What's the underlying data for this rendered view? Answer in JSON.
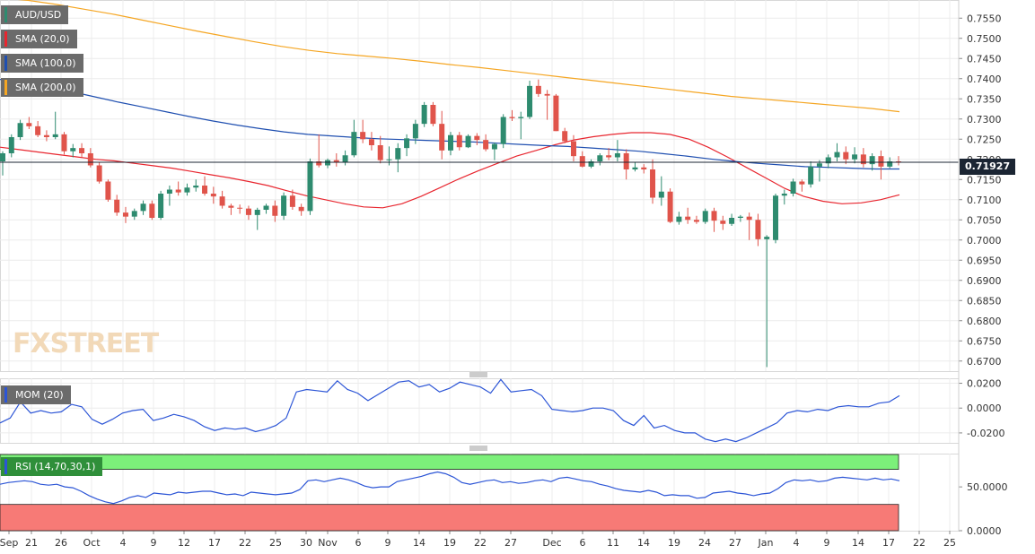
{
  "labels": {
    "pair": "AUD/USD",
    "sma20": "SMA (20,0)",
    "sma100": "SMA (100,0)",
    "sma200": "SMA (200,0)",
    "mom": "MOM (20)",
    "rsi": "RSI (14,70,30,1)",
    "current_price": "0.71927",
    "watermark": "FXSTREET"
  },
  "colors": {
    "up": "#2e8b6f",
    "down": "#e0544b",
    "sma20": "#e8262f",
    "sma100": "#1f4fb0",
    "sma200": "#f5a623",
    "mom": "#2c55d6",
    "rsi": "#2c55d6",
    "rsi_high_zone": "#7cf07a",
    "rsi_low_zone": "#f77a76"
  },
  "chart_data": [
    {
      "type": "candlestick",
      "title": "AUD/USD",
      "ylim": [
        0.6675,
        0.7595
      ],
      "y_ticks": [
        "0.7550",
        "0.7500",
        "0.7450",
        "0.7400",
        "0.7350",
        "0.7300",
        "0.7250",
        "0.7200",
        "0.7150",
        "0.7100",
        "0.7050",
        "0.7000",
        "0.6950",
        "0.6900",
        "0.6850",
        "0.6800",
        "0.6750",
        "0.6700"
      ],
      "x_ticks": [
        "Sep",
        "21",
        "26",
        "Oct",
        "4",
        "9",
        "12",
        "17",
        "22",
        "25",
        "30",
        "Nov",
        "6",
        "9",
        "14",
        "19",
        "22",
        "27",
        "Dec",
        "6",
        "11",
        "14",
        "19",
        "24",
        "27",
        "Jan",
        "4",
        "9",
        "14",
        "17",
        "22",
        "25"
      ],
      "current_price": 0.71927,
      "candles": [
        [
          0.7195,
          0.722,
          0.716,
          0.7215
        ],
        [
          0.7215,
          0.7262,
          0.7205,
          0.7255
        ],
        [
          0.7255,
          0.7298,
          0.7248,
          0.729
        ],
        [
          0.729,
          0.7305,
          0.7275,
          0.7282
        ],
        [
          0.7282,
          0.7295,
          0.7255,
          0.726
        ],
        [
          0.726,
          0.7272,
          0.7245,
          0.7255
        ],
        [
          0.7255,
          0.7318,
          0.725,
          0.7262
        ],
        [
          0.7262,
          0.7268,
          0.7212,
          0.722
        ],
        [
          0.722,
          0.7238,
          0.7205,
          0.7228
        ],
        [
          0.7228,
          0.724,
          0.7205,
          0.7215
        ],
        [
          0.7215,
          0.7228,
          0.718,
          0.7185
        ],
        [
          0.7185,
          0.7192,
          0.714,
          0.7145
        ],
        [
          0.7145,
          0.715,
          0.7095,
          0.71
        ],
        [
          0.71,
          0.7112,
          0.706,
          0.7068
        ],
        [
          0.7068,
          0.7082,
          0.7042,
          0.7058
        ],
        [
          0.7058,
          0.7078,
          0.705,
          0.7072
        ],
        [
          0.7072,
          0.7098,
          0.7062,
          0.709
        ],
        [
          0.709,
          0.7098,
          0.705,
          0.7055
        ],
        [
          0.7055,
          0.7122,
          0.705,
          0.7115
        ],
        [
          0.7115,
          0.7135,
          0.7085,
          0.7125
        ],
        [
          0.7125,
          0.7145,
          0.711,
          0.7118
        ],
        [
          0.7118,
          0.714,
          0.711,
          0.713
        ],
        [
          0.713,
          0.715,
          0.712,
          0.7135
        ],
        [
          0.7135,
          0.7158,
          0.711,
          0.7115
        ],
        [
          0.7115,
          0.7132,
          0.709,
          0.7108
        ],
        [
          0.7108,
          0.7122,
          0.7078,
          0.7085
        ],
        [
          0.7085,
          0.709,
          0.7062,
          0.708
        ],
        [
          0.708,
          0.7088,
          0.7065,
          0.7078
        ],
        [
          0.7078,
          0.7085,
          0.705,
          0.7062
        ],
        [
          0.7062,
          0.708,
          0.7025,
          0.7075
        ],
        [
          0.7075,
          0.709,
          0.7065,
          0.7085
        ],
        [
          0.7085,
          0.7098,
          0.7045,
          0.706
        ],
        [
          0.706,
          0.7118,
          0.705,
          0.711
        ],
        [
          0.711,
          0.7125,
          0.7075,
          0.7082
        ],
        [
          0.7082,
          0.709,
          0.706,
          0.7072
        ],
        [
          0.7072,
          0.7202,
          0.7062,
          0.7195
        ],
        [
          0.7195,
          0.7262,
          0.718,
          0.7185
        ],
        [
          0.7185,
          0.7202,
          0.7178,
          0.7198
        ],
        [
          0.7198,
          0.7215,
          0.7182,
          0.7192
        ],
        [
          0.7192,
          0.7222,
          0.7185,
          0.721
        ],
        [
          0.721,
          0.7298,
          0.7205,
          0.7268
        ],
        [
          0.7268,
          0.7298,
          0.724,
          0.725
        ],
        [
          0.725,
          0.7268,
          0.7222,
          0.7235
        ],
        [
          0.7235,
          0.7258,
          0.719,
          0.7198
        ],
        [
          0.7198,
          0.7232,
          0.7185,
          0.72
        ],
        [
          0.72,
          0.724,
          0.7168,
          0.7228
        ],
        [
          0.7228,
          0.7262,
          0.7208,
          0.7252
        ],
        [
          0.7252,
          0.7298,
          0.7238,
          0.7288
        ],
        [
          0.7288,
          0.7342,
          0.728,
          0.7335
        ],
        [
          0.7335,
          0.7342,
          0.7282,
          0.7288
        ],
        [
          0.7288,
          0.732,
          0.72,
          0.7222
        ],
        [
          0.7222,
          0.7268,
          0.721,
          0.726
        ],
        [
          0.726,
          0.7268,
          0.7222,
          0.723
        ],
        [
          0.723,
          0.7262,
          0.7228,
          0.7258
        ],
        [
          0.7258,
          0.7265,
          0.7235,
          0.7248
        ],
        [
          0.7248,
          0.7262,
          0.722,
          0.7225
        ],
        [
          0.7225,
          0.7242,
          0.7198,
          0.7238
        ],
        [
          0.7238,
          0.7312,
          0.7228,
          0.7305
        ],
        [
          0.7305,
          0.7322,
          0.7295,
          0.7302
        ],
        [
          0.7302,
          0.7318,
          0.725,
          0.7305
        ],
        [
          0.7305,
          0.7395,
          0.73,
          0.7382
        ],
        [
          0.7382,
          0.7398,
          0.7355,
          0.7362
        ],
        [
          0.7362,
          0.7372,
          0.7298,
          0.7358
        ],
        [
          0.7358,
          0.7362,
          0.727,
          0.727
        ],
        [
          0.727,
          0.7278,
          0.724,
          0.7245
        ],
        [
          0.7245,
          0.726,
          0.7195,
          0.7208
        ],
        [
          0.7208,
          0.722,
          0.718,
          0.7182
        ],
        [
          0.7182,
          0.72,
          0.7178,
          0.7195
        ],
        [
          0.7195,
          0.7215,
          0.7185,
          0.721
        ],
        [
          0.721,
          0.7228,
          0.7198,
          0.7205
        ],
        [
          0.7205,
          0.7248,
          0.7195,
          0.7215
        ],
        [
          0.7215,
          0.7225,
          0.715,
          0.7175
        ],
        [
          0.7175,
          0.7192,
          0.717,
          0.718
        ],
        [
          0.718,
          0.7188,
          0.7165,
          0.7175
        ],
        [
          0.7175,
          0.72,
          0.709,
          0.7105
        ],
        [
          0.7105,
          0.7158,
          0.7085,
          0.712
        ],
        [
          0.712,
          0.7128,
          0.7042,
          0.7045
        ],
        [
          0.7045,
          0.707,
          0.7038,
          0.7058
        ],
        [
          0.7058,
          0.708,
          0.704,
          0.705
        ],
        [
          0.705,
          0.706,
          0.704,
          0.7045
        ],
        [
          0.7045,
          0.7078,
          0.704,
          0.7072
        ],
        [
          0.7072,
          0.708,
          0.702,
          0.7048
        ],
        [
          0.7048,
          0.706,
          0.7025,
          0.704
        ],
        [
          0.704,
          0.7065,
          0.7035,
          0.7055
        ],
        [
          0.7055,
          0.7062,
          0.7045,
          0.7058
        ],
        [
          0.7058,
          0.7068,
          0.7,
          0.705
        ],
        [
          0.705,
          0.7065,
          0.6985,
          0.7002
        ],
        [
          0.7002,
          0.7012,
          0.6685,
          0.7008
        ],
        [
          0.7,
          0.7115,
          0.6992,
          0.711
        ],
        [
          0.711,
          0.7125,
          0.7088,
          0.7115
        ],
        [
          0.7115,
          0.7152,
          0.7108,
          0.7145
        ],
        [
          0.7145,
          0.715,
          0.712,
          0.7138
        ],
        [
          0.7138,
          0.7195,
          0.713,
          0.7182
        ],
        [
          0.7182,
          0.7198,
          0.7145,
          0.719
        ],
        [
          0.719,
          0.7212,
          0.7178,
          0.7205
        ],
        [
          0.7205,
          0.724,
          0.7195,
          0.7218
        ],
        [
          0.7218,
          0.7232,
          0.7188,
          0.72
        ],
        [
          0.72,
          0.723,
          0.719,
          0.7212
        ],
        [
          0.7212,
          0.7228,
          0.718,
          0.7188
        ],
        [
          0.7188,
          0.7215,
          0.7172,
          0.7208
        ],
        [
          0.7208,
          0.7222,
          0.715,
          0.7182
        ],
        [
          0.7182,
          0.7205,
          0.7178,
          0.7195
        ],
        [
          0.7195,
          0.7208,
          0.7185,
          0.7193
        ]
      ],
      "series": [
        {
          "key": "sma20",
          "name": "SMA (20,0)",
          "values": [
            0.723,
            0.7224,
            0.7218,
            0.7212,
            0.7206,
            0.72,
            0.7196,
            0.719,
            0.7184,
            0.7178,
            0.717,
            0.7162,
            0.7154,
            0.7145,
            0.7135,
            0.7122,
            0.711,
            0.71,
            0.709,
            0.7082,
            0.708,
            0.709,
            0.7108,
            0.713,
            0.7152,
            0.7172,
            0.719,
            0.7208,
            0.7222,
            0.7236,
            0.7248,
            0.7256,
            0.7262,
            0.7266,
            0.7266,
            0.7262,
            0.725,
            0.723,
            0.7206,
            0.718,
            0.7154,
            0.7128,
            0.7108,
            0.7096,
            0.709,
            0.7092,
            0.71,
            0.7112
          ]
        },
        {
          "key": "sma100",
          "name": "SMA (100,0)",
          "values": [
            0.7398,
            0.7392,
            0.738,
            0.7368,
            0.7355,
            0.7342,
            0.733,
            0.7318,
            0.7306,
            0.7295,
            0.7285,
            0.7276,
            0.7268,
            0.7262,
            0.7258,
            0.7254,
            0.7251,
            0.7249,
            0.7247,
            0.7245,
            0.7243,
            0.724,
            0.7237,
            0.7234,
            0.7232,
            0.7228,
            0.7224,
            0.722,
            0.7214,
            0.7208,
            0.7201,
            0.7195,
            0.719,
            0.7186,
            0.7182,
            0.718,
            0.7178,
            0.7176,
            0.7176
          ]
        },
        {
          "key": "sma200",
          "name": "SMA (200,0)",
          "values": [
            0.76,
            0.7594,
            0.7584,
            0.7572,
            0.756,
            0.7546,
            0.7532,
            0.7518,
            0.7505,
            0.7492,
            0.748,
            0.747,
            0.7462,
            0.7456,
            0.745,
            0.7443,
            0.7435,
            0.7428,
            0.742,
            0.7412,
            0.7404,
            0.7396,
            0.7388,
            0.738,
            0.7372,
            0.7364,
            0.7356,
            0.735,
            0.7344,
            0.7338,
            0.7332,
            0.7326,
            0.7318
          ]
        }
      ]
    },
    {
      "type": "line",
      "title": "MOM (20)",
      "ylim": [
        -0.028,
        0.024
      ],
      "y_ticks": [
        "0.0200",
        "0.0000",
        "-0.0200"
      ],
      "series": [
        {
          "key": "mom",
          "name": "MOM (20)",
          "values": [
            -0.012,
            -0.008,
            0.005,
            -0.004,
            -0.002,
            -0.004,
            -0.003,
            0.003,
            0.001,
            -0.009,
            -0.013,
            -0.009,
            -0.004,
            -0.002,
            -0.001,
            -0.01,
            -0.008,
            -0.005,
            -0.007,
            -0.01,
            -0.015,
            -0.018,
            -0.016,
            -0.017,
            -0.016,
            -0.019,
            -0.017,
            -0.014,
            -0.008,
            0.013,
            0.015,
            0.014,
            0.013,
            0.022,
            0.015,
            0.012,
            0.006,
            0.011,
            0.016,
            0.021,
            0.022,
            0.017,
            0.019,
            0.013,
            0.016,
            0.021,
            0.019,
            0.017,
            0.012,
            0.023,
            0.013,
            0.014,
            0.015,
            0.01,
            -0.001,
            -0.002,
            -0.003,
            -0.002,
            0.0,
            0.0,
            -0.002,
            -0.01,
            -0.014,
            -0.006,
            -0.016,
            -0.014,
            -0.018,
            -0.02,
            -0.02,
            -0.025,
            -0.027,
            -0.025,
            -0.027,
            -0.024,
            -0.02,
            -0.016,
            -0.012,
            -0.004,
            -0.002,
            -0.003,
            -0.001,
            -0.002,
            0.001,
            0.002,
            0.001,
            0.001,
            0.004,
            0.005,
            0.01
          ]
        }
      ]
    },
    {
      "type": "line",
      "title": "RSI (14,70,30,1)",
      "ylim": [
        0,
        88
      ],
      "y_ticks": [
        "50.0000",
        "0.0000"
      ],
      "zones": [
        70,
        30
      ],
      "series": [
        {
          "key": "rsi",
          "name": "RSI (14,70,30,1)",
          "values": [
            53,
            55,
            56,
            57,
            56,
            53,
            52,
            53,
            50,
            49,
            45,
            40,
            36,
            33,
            31,
            34,
            38,
            40,
            38,
            43,
            42,
            41,
            44,
            43,
            44,
            45,
            45,
            43,
            41,
            42,
            40,
            44,
            43,
            42,
            41,
            42,
            43,
            47,
            57,
            58,
            56,
            58,
            60,
            58,
            55,
            51,
            49,
            50,
            50,
            56,
            58,
            60,
            62,
            65,
            67,
            65,
            61,
            55,
            53,
            55,
            57,
            58,
            55,
            56,
            54,
            55,
            57,
            58,
            56,
            60,
            61,
            59,
            57,
            56,
            53,
            51,
            48,
            46,
            45,
            44,
            46,
            44,
            40,
            41,
            40,
            40,
            37,
            38,
            43,
            44,
            45,
            43,
            42,
            40,
            42,
            43,
            48,
            55,
            58,
            57,
            58,
            56,
            57,
            60,
            61,
            60,
            59,
            58,
            60,
            58,
            59,
            57
          ]
        }
      ]
    }
  ]
}
